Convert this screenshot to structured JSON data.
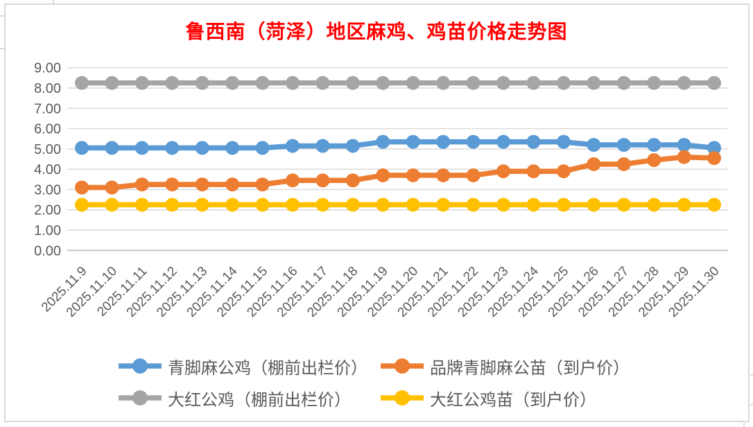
{
  "chart": {
    "title": "鲁西南（菏泽）地区麻鸡、鸡苗价格走势图",
    "title_color": "#FF0000",
    "axis_label_color": "#595959",
    "gridline_color": "#D9D9D9",
    "axis_line_color": "#C6C6C6",
    "background_color": "#FFFFFF"
  },
  "chart_data": {
    "type": "line",
    "title": "鲁西南（菏泽）地区麻鸡、鸡苗价格走势图",
    "xlabel": "",
    "ylabel": "",
    "ylim": [
      0,
      9
    ],
    "y_tick_step": 1,
    "y_tick_labels": [
      "0.00",
      "1.00",
      "2.00",
      "3.00",
      "4.00",
      "5.00",
      "6.00",
      "7.00",
      "8.00",
      "9.00"
    ],
    "grid": "horizontal",
    "legend_position": "bottom",
    "categories": [
      "2025.11.9",
      "2025.11.10",
      "2025.11.11",
      "2025.11.12",
      "2025.11.13",
      "2025.11.14",
      "2025.11.15",
      "2025.11.16",
      "2025.11.17",
      "2025.11.18",
      "2025.11.19",
      "2025.11.20",
      "2025.11.21",
      "2025.11.22",
      "2025.11.23",
      "2025.11.24",
      "2025.11.25",
      "2025.11.26",
      "2025.11.27",
      "2025.11.28",
      "2025.11.29",
      "2025.11.30"
    ],
    "series": [
      {
        "name": "青脚麻公鸡（棚前出栏价）",
        "color": "#5B9BD5",
        "values": [
          5.05,
          5.05,
          5.05,
          5.05,
          5.05,
          5.05,
          5.05,
          5.15,
          5.15,
          5.15,
          5.35,
          5.35,
          5.35,
          5.35,
          5.35,
          5.35,
          5.35,
          5.2,
          5.2,
          5.2,
          5.2,
          5.05
        ]
      },
      {
        "name": "品牌青脚麻公苗（到户价）",
        "color": "#ED7D31",
        "values": [
          3.1,
          3.1,
          3.25,
          3.25,
          3.25,
          3.25,
          3.25,
          3.45,
          3.45,
          3.45,
          3.7,
          3.7,
          3.7,
          3.7,
          3.9,
          3.9,
          3.9,
          4.25,
          4.25,
          4.45,
          4.6,
          4.55
        ]
      },
      {
        "name": "大红公鸡（棚前出栏价）",
        "color": "#A5A5A5",
        "values": [
          8.25,
          8.25,
          8.25,
          8.25,
          8.25,
          8.25,
          8.25,
          8.25,
          8.25,
          8.25,
          8.25,
          8.25,
          8.25,
          8.25,
          8.25,
          8.25,
          8.25,
          8.25,
          8.25,
          8.25,
          8.25,
          8.25
        ]
      },
      {
        "name": "大红公鸡苗（到户价）",
        "color": "#FFC000",
        "values": [
          2.25,
          2.25,
          2.25,
          2.25,
          2.25,
          2.25,
          2.25,
          2.25,
          2.25,
          2.25,
          2.25,
          2.25,
          2.25,
          2.25,
          2.25,
          2.25,
          2.25,
          2.25,
          2.25,
          2.25,
          2.25,
          2.25
        ]
      }
    ]
  }
}
